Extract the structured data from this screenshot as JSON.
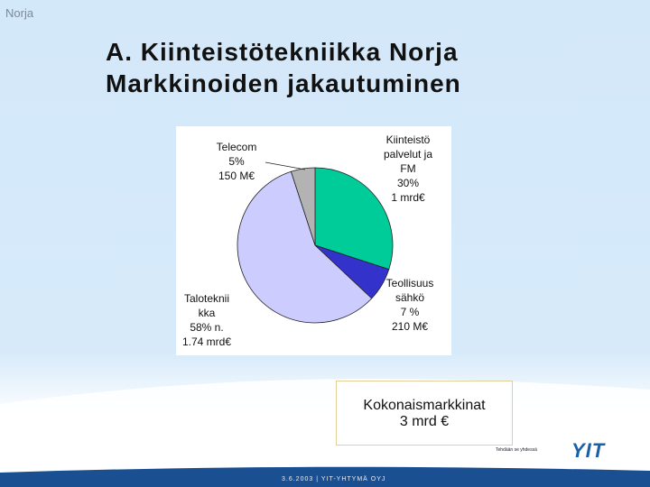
{
  "header": {
    "corner_label": "Norja",
    "title_line1": "A. Kiinteistötekniikka Norja",
    "title_line2": "Markkinoiden jakautuminen"
  },
  "colors": {
    "kiinteisto": "#00cc99",
    "teollisuus": "#3333cc",
    "talotekniikka": "#ccccff",
    "telecom": "#b3b3b3",
    "background_top": "#cfe6f8",
    "footer_band": "#1a4f92",
    "logo": "#1a5fa8"
  },
  "chart_data": {
    "type": "pie",
    "title": "",
    "slices": [
      {
        "name": "Kiinteistö palvelut ja FM",
        "value": 30,
        "color": "#00cc99",
        "label_lines": [
          "Kiinteistö",
          "palvelut ja",
          "FM",
          "30%",
          "1 mrd€"
        ]
      },
      {
        "name": "Teollisuus sähkö",
        "value": 7,
        "color": "#3333cc",
        "label_lines": [
          "Teollisuus",
          "sähkö",
          "7 %",
          "210 M€"
        ]
      },
      {
        "name": "Talotekniikka",
        "value": 58,
        "color": "#ccccff",
        "label_lines": [
          "Taloteknii",
          "kka",
          "58% n.",
          "1.74 mrd€"
        ]
      },
      {
        "name": "Telecom",
        "value": 5,
        "color": "#b3b3b3",
        "label_lines": [
          "Telecom",
          "5%",
          "150 M€"
        ]
      }
    ],
    "total": {
      "line1": "Kokonaismarkkinat",
      "line2": "3 mrd €"
    }
  },
  "footer": {
    "slogan": "Tehdään se yhdessä",
    "logo_text": "YIT",
    "date_company": "3.6.2003  |  YIT-YHTYMÄ OYJ"
  }
}
